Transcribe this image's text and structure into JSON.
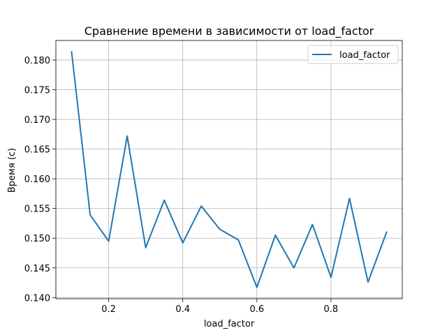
{
  "chart_data": {
    "type": "line",
    "title": "Сравнение времени в зависимости от load_factor",
    "xlabel": "load_factor",
    "ylabel": "Время (с)",
    "xlim": [
      0.0575,
      0.9925
    ],
    "ylim": [
      0.1398,
      0.1833
    ],
    "x_ticks": [
      0.2,
      0.4,
      0.6,
      0.8
    ],
    "x_tick_labels": [
      "0.2",
      "0.4",
      "0.6",
      "0.8"
    ],
    "y_ticks": [
      0.14,
      0.145,
      0.15,
      0.155,
      0.16,
      0.165,
      0.17,
      0.175,
      0.18
    ],
    "y_tick_labels": [
      "0.140",
      "0.145",
      "0.150",
      "0.155",
      "0.160",
      "0.165",
      "0.170",
      "0.175",
      "0.180"
    ],
    "grid": true,
    "legend_position": "upper right",
    "series": [
      {
        "name": "load_factor",
        "color": "#1f77b4",
        "x": [
          0.1,
          0.15,
          0.2,
          0.25,
          0.3,
          0.35,
          0.4,
          0.45,
          0.5,
          0.55,
          0.6,
          0.65,
          0.7,
          0.75,
          0.8,
          0.85,
          0.9,
          0.95
        ],
        "y": [
          0.1814,
          0.1539,
          0.1495,
          0.1672,
          0.1484,
          0.1564,
          0.1492,
          0.1554,
          0.1515,
          0.1497,
          0.1417,
          0.1505,
          0.145,
          0.1523,
          0.1434,
          0.1567,
          0.1426,
          0.151
        ]
      }
    ]
  }
}
